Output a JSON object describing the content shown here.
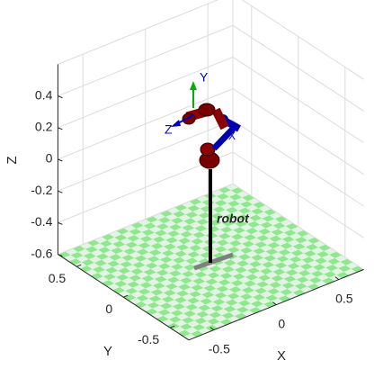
{
  "chart_data": {
    "type": "3d",
    "xlabel": "X",
    "ylabel": "Y",
    "zlabel": "Z",
    "xlim": [
      -0.7,
      0.7
    ],
    "ylim": [
      -0.7,
      0.7
    ],
    "zlim": [
      -0.6,
      0.6
    ],
    "xticks": [
      -0.5,
      0,
      0.5
    ],
    "yticks": [
      -0.5,
      0,
      0.5
    ],
    "zticks": [
      -0.6,
      -0.4,
      -0.2,
      0,
      0.2,
      0.4
    ],
    "grid": true,
    "annotations": [
      "robot"
    ],
    "frame_labels": [
      "Y",
      "Z",
      "X"
    ]
  }
}
